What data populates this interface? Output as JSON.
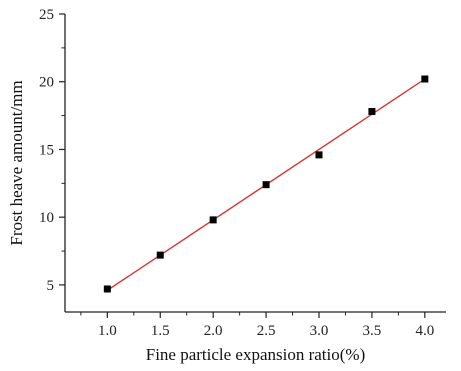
{
  "chart_data": {
    "type": "scatter",
    "title": "",
    "xlabel": "Fine particle expansion ratio(%)",
    "ylabel": "Frost heave amount/mm",
    "xlim": [
      0.6,
      4.2
    ],
    "ylim": [
      3,
      25
    ],
    "xticks": [
      "1.0",
      "1.5",
      "2.0",
      "2.5",
      "3.0",
      "3.5",
      "4.0"
    ],
    "yticks": [
      "5",
      "10",
      "15",
      "20",
      "25"
    ],
    "grid": false,
    "legend": "none",
    "series": [
      {
        "x": [
          1.0,
          1.5,
          2.0,
          2.5,
          3.0,
          3.5,
          4.0
        ],
        "y": [
          4.7,
          7.2,
          9.8,
          12.4,
          14.6,
          17.8,
          20.2
        ],
        "marker": "square",
        "color": "#000000"
      }
    ],
    "fit_line": {
      "x": [
        1.0,
        4.0
      ],
      "y": [
        4.6,
        20.2
      ],
      "color": "#d62a2a"
    }
  }
}
